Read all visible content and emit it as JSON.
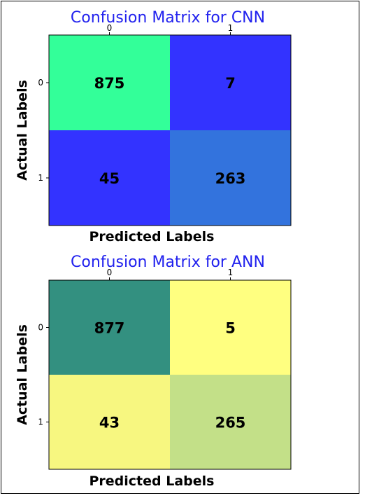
{
  "chart_data": [
    {
      "type": "heatmap",
      "title": "Confusion Matrix for CNN",
      "xlabel": "Predicted Labels",
      "ylabel": "Actual Labels",
      "x_ticks": [
        "0",
        "1"
      ],
      "y_ticks": [
        "0",
        "1"
      ],
      "values": [
        [
          875,
          7
        ],
        [
          45,
          263
        ]
      ],
      "cell_colors": [
        [
          "#33ff99",
          "#3333ff"
        ],
        [
          "#3333ff",
          "#3373dd"
        ]
      ],
      "title_color": "#2222ee",
      "x_tick_position": "top"
    },
    {
      "type": "heatmap",
      "title": "Confusion Matrix for ANN",
      "xlabel": "Predicted Labels",
      "ylabel": "Actual Labels",
      "x_ticks": [
        "0",
        "1"
      ],
      "y_ticks": [
        "0",
        "1"
      ],
      "values": [
        [
          877,
          5
        ],
        [
          43,
          265
        ]
      ],
      "cell_colors": [
        [
          "#339080",
          "#ffff80"
        ],
        [
          "#f7f780",
          "#c3e088"
        ]
      ],
      "title_color": "#2222ee",
      "x_tick_position": "top"
    }
  ]
}
